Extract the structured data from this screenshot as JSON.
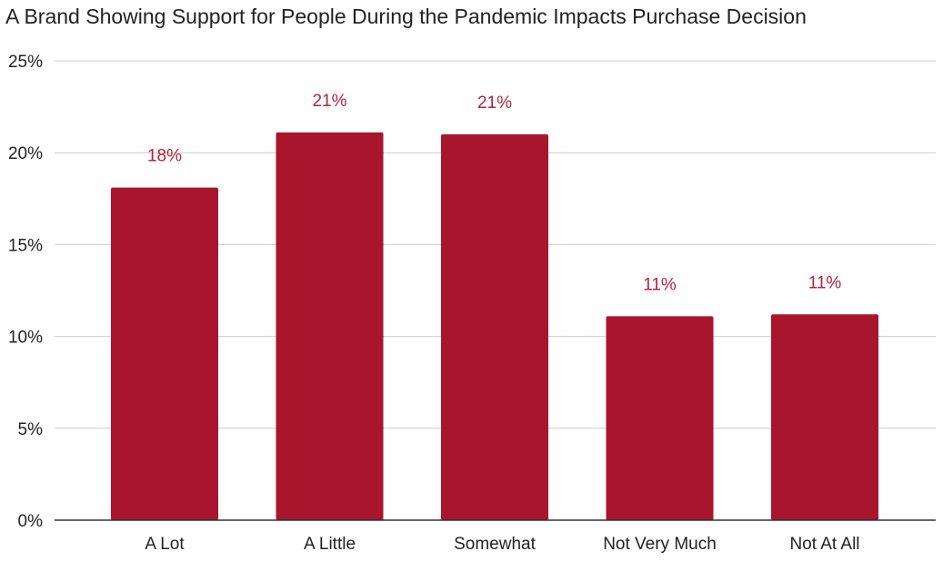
{
  "chart_data": {
    "type": "bar",
    "title": "A Brand Showing Support for People During the Pandemic Impacts Purchase Decision",
    "xlabel": "",
    "ylabel": "",
    "categories": [
      "A Lot",
      "A Little",
      "Somewhat",
      "Not Very Much",
      "Not At All"
    ],
    "values": [
      18.1,
      21.1,
      21.0,
      11.1,
      11.2
    ],
    "data_labels": [
      "18%",
      "21%",
      "21%",
      "11%",
      "11%"
    ],
    "ylim": [
      0,
      25
    ],
    "yticks": [
      0,
      5,
      10,
      15,
      20,
      25
    ],
    "ytick_labels": [
      "0%",
      "5%",
      "10%",
      "15%",
      "20%",
      "25%"
    ],
    "grid": true,
    "legend": "none",
    "colors": {
      "bar": "#a8152d",
      "data_label": "#b3233b",
      "text": "#222222",
      "grid": "#cccccc"
    }
  }
}
